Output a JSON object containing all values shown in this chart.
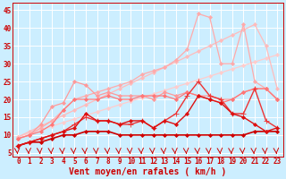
{
  "xlabel": "Vent moyen/en rafales ( km/h )",
  "ylabel_ticks": [
    5,
    10,
    15,
    20,
    25,
    30,
    35,
    40,
    45
  ],
  "xlim": [
    -0.5,
    23.5
  ],
  "ylim": [
    4,
    47
  ],
  "bg_color": "#cceeff",
  "grid_color": "#ffffff",
  "series": [
    {
      "x": [
        0,
        1,
        2,
        3,
        4,
        5,
        6,
        7,
        8,
        9,
        10,
        11,
        12,
        13,
        14,
        15,
        16,
        17,
        18,
        19,
        20,
        21,
        22,
        23
      ],
      "y": [
        9.5,
        10.5,
        11.5,
        12.5,
        13.5,
        14.5,
        15.5,
        16.5,
        17.5,
        18.5,
        19.5,
        20.5,
        21.5,
        22.5,
        23.5,
        24.5,
        25.5,
        26.5,
        27.5,
        28.5,
        29.5,
        30.5,
        31.5,
        32.5
      ],
      "color": "#ffcccc",
      "lw": 0.9,
      "marker": "D",
      "ms": 2.0
    },
    {
      "x": [
        0,
        1,
        2,
        3,
        4,
        5,
        6,
        7,
        8,
        9,
        10,
        11,
        12,
        13,
        14,
        15,
        16,
        17,
        18,
        19,
        20,
        21,
        22,
        23
      ],
      "y": [
        9.5,
        11,
        12.5,
        14,
        15.5,
        17,
        18.5,
        20,
        21.5,
        23,
        24.5,
        26,
        27.5,
        29,
        30.5,
        32,
        33.5,
        35,
        36.5,
        38,
        39.5,
        41,
        35,
        23
      ],
      "color": "#ffbbbb",
      "lw": 0.9,
      "marker": "D",
      "ms": 2.0
    },
    {
      "x": [
        0,
        1,
        2,
        3,
        4,
        5,
        6,
        7,
        8,
        9,
        10,
        11,
        12,
        13,
        14,
        15,
        16,
        17,
        18,
        19,
        20,
        21,
        22,
        23
      ],
      "y": [
        9,
        10,
        12,
        14,
        17,
        20,
        21,
        22,
        23,
        24,
        25,
        27,
        28,
        29,
        31,
        34,
        44,
        43,
        30,
        30,
        41,
        25,
        23,
        20
      ],
      "color": "#ffaaaa",
      "lw": 0.9,
      "marker": "D",
      "ms": 2.0
    },
    {
      "x": [
        0,
        1,
        2,
        3,
        4,
        5,
        6,
        7,
        8,
        9,
        10,
        11,
        12,
        13,
        14,
        15,
        16,
        17,
        18,
        19,
        20,
        21,
        22,
        23
      ],
      "y": [
        9,
        10,
        13,
        18,
        19,
        25,
        24,
        21,
        22,
        21,
        21,
        21,
        20,
        22,
        21,
        22,
        21,
        21,
        20,
        20,
        22,
        23,
        23,
        20
      ],
      "color": "#ff9999",
      "lw": 0.9,
      "marker": "D",
      "ms": 2.0
    },
    {
      "x": [
        0,
        1,
        2,
        3,
        4,
        5,
        6,
        7,
        8,
        9,
        10,
        11,
        12,
        13,
        14,
        15,
        16,
        17,
        18,
        19,
        20,
        21,
        22,
        23
      ],
      "y": [
        9,
        10,
        11,
        13,
        17,
        20,
        20,
        20,
        21,
        20,
        20,
        21,
        21,
        21,
        20,
        22,
        21,
        20,
        19,
        20,
        22,
        23,
        23,
        20
      ],
      "color": "#ff7777",
      "lw": 0.9,
      "marker": "D",
      "ms": 2.0
    },
    {
      "x": [
        0,
        1,
        2,
        3,
        4,
        5,
        6,
        7,
        8,
        9,
        10,
        11,
        12,
        13,
        14,
        15,
        16,
        17,
        18,
        19,
        20,
        21,
        22,
        23
      ],
      "y": [
        7,
        8,
        9,
        10,
        11,
        13,
        15,
        14,
        14,
        13,
        13,
        14,
        12,
        14,
        16,
        21,
        25,
        21,
        20,
        16,
        16,
        23,
        14,
        12
      ],
      "color": "#ee3333",
      "lw": 1.0,
      "marker": "+",
      "ms": 4
    },
    {
      "x": [
        0,
        1,
        2,
        3,
        4,
        5,
        6,
        7,
        8,
        9,
        10,
        11,
        12,
        13,
        14,
        15,
        16,
        17,
        18,
        19,
        20,
        21,
        22,
        23
      ],
      "y": [
        7,
        8,
        8,
        9,
        10,
        10,
        11,
        11,
        11,
        10,
        10,
        10,
        10,
        10,
        10,
        10,
        10,
        10,
        10,
        10,
        10,
        11,
        11,
        11
      ],
      "color": "#cc0000",
      "lw": 1.2,
      "marker": "D",
      "ms": 2.0
    },
    {
      "x": [
        0,
        1,
        2,
        3,
        4,
        5,
        6,
        7,
        8,
        9,
        10,
        11,
        12,
        13,
        14,
        15,
        16,
        17,
        18,
        19,
        20,
        21,
        22,
        23
      ],
      "y": [
        7,
        8,
        9,
        10,
        11,
        12,
        16,
        14,
        14,
        13,
        14,
        14,
        12,
        14,
        13,
        16,
        21,
        20,
        19,
        16,
        15,
        13,
        11,
        12
      ],
      "color": "#dd1111",
      "lw": 1.0,
      "marker": "D",
      "ms": 2.0
    }
  ],
  "arrow_color": "#cc0000",
  "tick_fontsize": 5.5,
  "label_fontsize": 7.0
}
